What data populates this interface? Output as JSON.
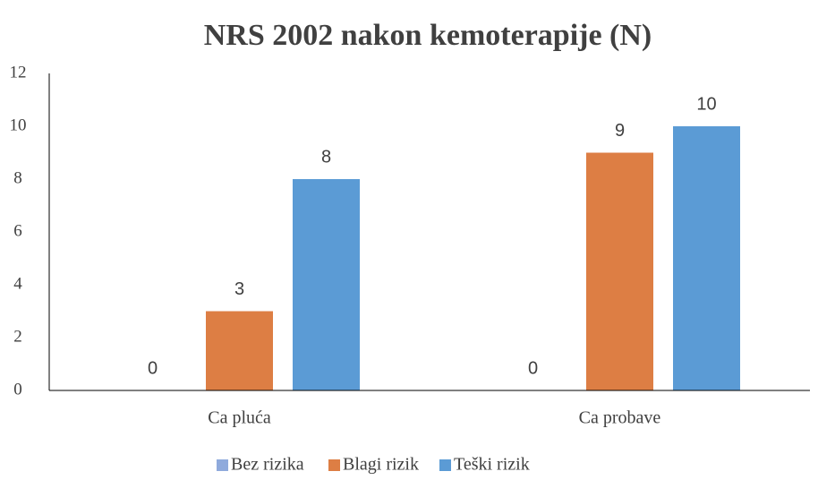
{
  "chart_data": {
    "type": "bar",
    "title": "NRS 2002 nakon kemoterapije (N)",
    "categories": [
      "Ca pluća",
      "Ca probave"
    ],
    "series": [
      {
        "name": "Bez rizika",
        "color": "#8faadc",
        "values": [
          0,
          0
        ]
      },
      {
        "name": "Blagi rizik",
        "color": "#dd7e44",
        "values": [
          3,
          9
        ]
      },
      {
        "name": "Teški rizik",
        "color": "#5b9bd5",
        "values": [
          8,
          10
        ]
      }
    ],
    "ylim": [
      0,
      12
    ],
    "yticks": [
      0,
      2,
      4,
      6,
      8,
      10,
      12
    ],
    "grid": false,
    "legend": "bottom"
  }
}
